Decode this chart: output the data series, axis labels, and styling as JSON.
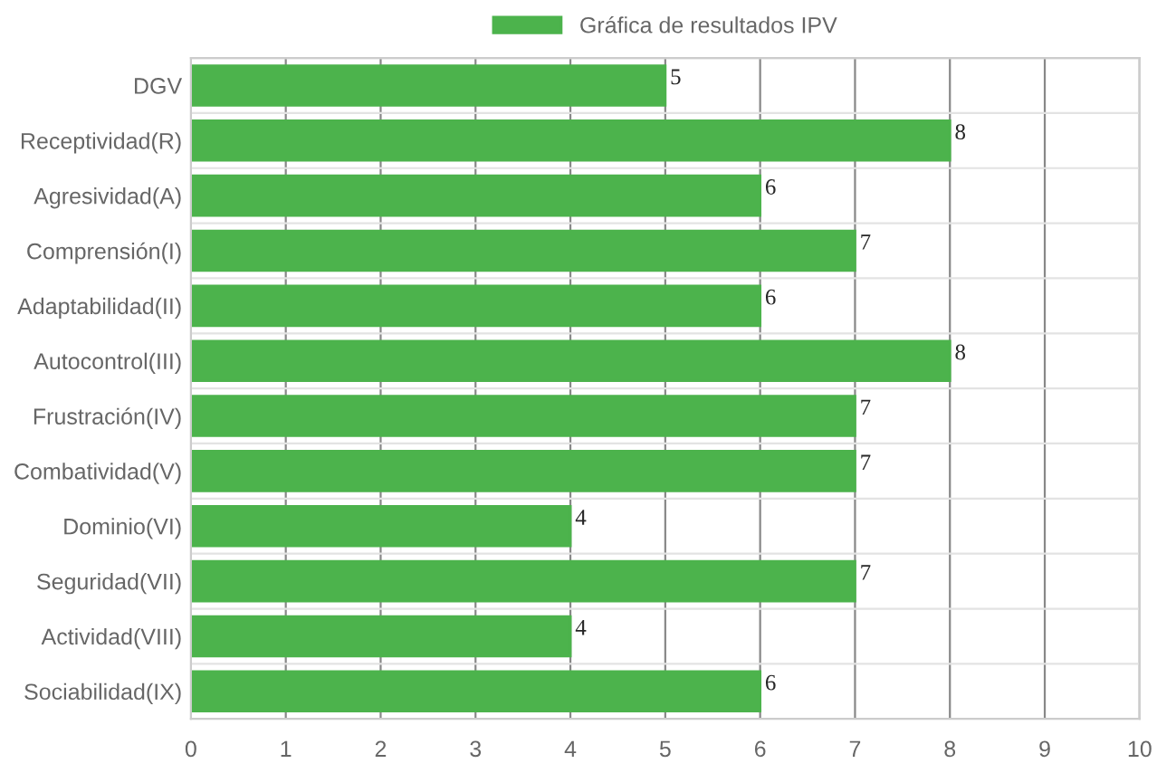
{
  "chart_data": {
    "type": "bar",
    "orientation": "horizontal",
    "categories": [
      "DGV",
      "Receptividad(R)",
      "Agresividad(A)",
      "Comprensión(I)",
      "Adaptabilidad(II)",
      "Autocontrol(III)",
      "Frustración(IV)",
      "Combatividad(V)",
      "Dominio(VI)",
      "Seguridad(VII)",
      "Actividad(VIII)",
      "Sociabilidad(IX)"
    ],
    "series": [
      {
        "name": "Gráfica de resultados IPV",
        "color": "#4cb34c",
        "values": [
          5,
          8,
          6,
          7,
          6,
          8,
          7,
          7,
          4,
          7,
          4,
          6
        ]
      }
    ],
    "xlim": [
      0,
      10
    ],
    "xticks": [
      0,
      1,
      2,
      3,
      4,
      5,
      6,
      7,
      8,
      9,
      10
    ],
    "grid": true,
    "legend": "top",
    "data_labels": true
  }
}
